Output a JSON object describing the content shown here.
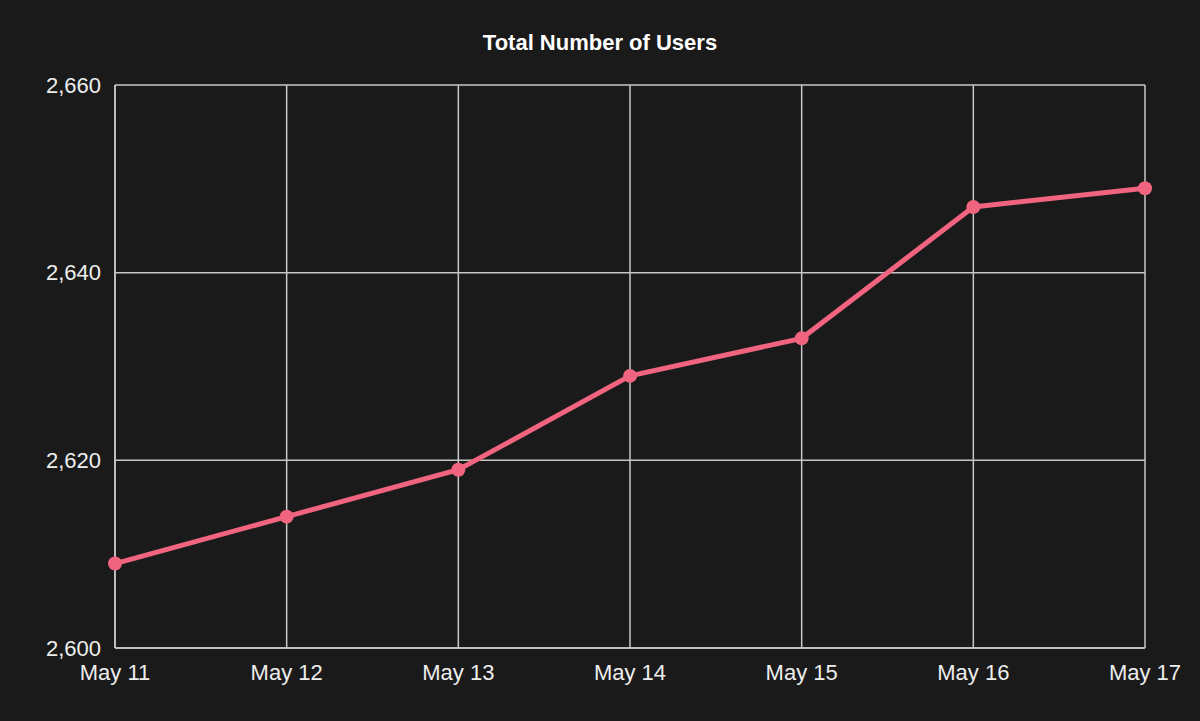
{
  "chart_data": {
    "type": "line",
    "title": "Total Number of Users",
    "categories": [
      "May 11",
      "May 12",
      "May 13",
      "May 14",
      "May 15",
      "May 16",
      "May 17"
    ],
    "values": [
      2609,
      2614,
      2619,
      2629,
      2633,
      2647,
      2649
    ],
    "color": "#f0647f",
    "marker": "circle",
    "ylim": [
      2600,
      2660
    ],
    "yticks": [
      {
        "value": 2600,
        "label": "2,600"
      },
      {
        "value": 2620,
        "label": "2,620"
      },
      {
        "value": 2640,
        "label": "2,640"
      },
      {
        "value": 2660,
        "label": "2,660"
      }
    ],
    "grid": true
  }
}
